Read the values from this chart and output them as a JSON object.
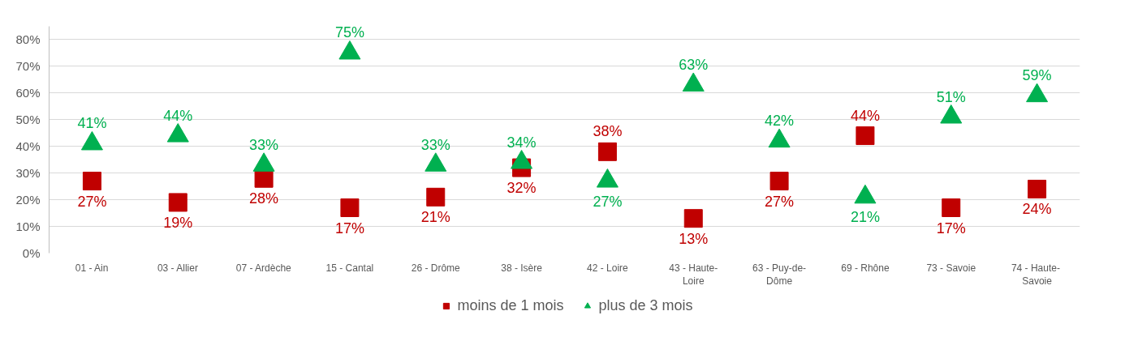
{
  "chart_data": {
    "type": "scatter",
    "categories": [
      "01 - Ain",
      "03 - Allier",
      "07 - Ardèche",
      "15 - Cantal",
      "26 - Drôme",
      "38 - Isère",
      "42 - Loire",
      "43 - Haute-Loire",
      "63 - Puy-de-Dôme",
      "69 - Rhône",
      "73 - Savoie",
      "74 -  Haute-Savoie"
    ],
    "series": [
      {
        "name": "moins de 1 mois",
        "color": "#c00000",
        "marker": "square",
        "values": [
          27,
          19,
          28,
          17,
          21,
          32,
          38,
          13,
          27,
          44,
          17,
          24
        ],
        "value_labels": [
          "27%",
          "19%",
          "28%",
          "17%",
          "21%",
          "32%",
          "38%",
          "13%",
          "27%",
          "44%",
          "17%",
          "24%"
        ]
      },
      {
        "name": "plus de 3 mois",
        "color": "#00b050",
        "marker": "triangle",
        "values": [
          41,
          44,
          33,
          75,
          33,
          34,
          27,
          63,
          42,
          21,
          51,
          59
        ],
        "value_labels": [
          "41%",
          "44%",
          "33%",
          "75%",
          "33%",
          "34%",
          "27%",
          "63%",
          "42%",
          "21%",
          "51%",
          "59%"
        ]
      }
    ],
    "ylim": [
      0,
      85
    ],
    "yticks": [
      {
        "value": 0,
        "label": "0%"
      },
      {
        "value": 10,
        "label": "10%"
      },
      {
        "value": 20,
        "label": "20%"
      },
      {
        "value": 30,
        "label": "30%"
      },
      {
        "value": 40,
        "label": "40%"
      },
      {
        "value": 50,
        "label": "50%"
      },
      {
        "value": 60,
        "label": "60%"
      },
      {
        "value": 70,
        "label": "70%"
      },
      {
        "value": 80,
        "label": "80%"
      }
    ],
    "grid": "y",
    "legend": "bottom",
    "data_labels": true
  }
}
